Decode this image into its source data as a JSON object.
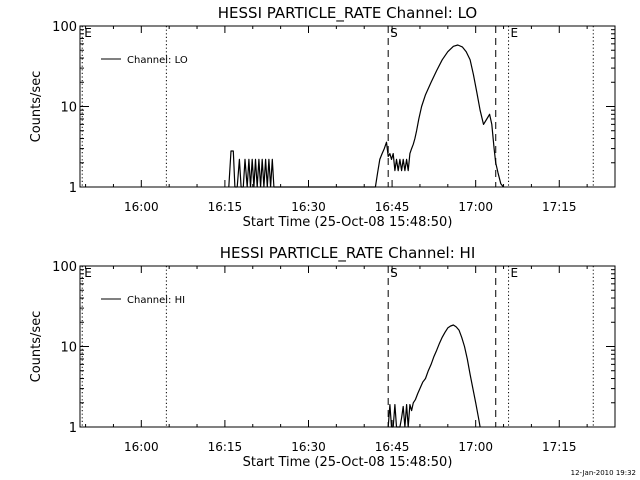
{
  "chart_data": [
    {
      "type": "line",
      "title": "HESSI PARTICLE_RATE Channel: LO",
      "xlabel": "Start Time (25-Oct-08 15:48:50)",
      "ylabel": "Counts/sec",
      "x_unit": "minutes",
      "xlim": [
        949,
        1045
      ],
      "ylim": [
        1,
        100
      ],
      "y_scale": "log",
      "x_ticks": [
        {
          "value": 960,
          "label": "16:00"
        },
        {
          "value": 975,
          "label": "16:15"
        },
        {
          "value": 990,
          "label": "16:30"
        },
        {
          "value": 1005,
          "label": "16:45"
        },
        {
          "value": 1020,
          "label": "17:00"
        },
        {
          "value": 1035,
          "label": "17:15"
        }
      ],
      "y_ticks": [
        {
          "value": 1,
          "label": "1"
        },
        {
          "value": 10,
          "label": "10"
        },
        {
          "value": 100,
          "label": "100"
        }
      ],
      "legend": {
        "entry": "Channel: LO",
        "position": "top-left"
      },
      "markers": [
        {
          "x": 949.4,
          "label": "E",
          "style": "dotted"
        },
        {
          "x": 964.5,
          "label": "",
          "style": "dotted"
        },
        {
          "x": 1004.3,
          "label": "S",
          "style": "dashed"
        },
        {
          "x": 1023.6,
          "label": "",
          "style": "dashed"
        },
        {
          "x": 1025.9,
          "label": "E",
          "style": "dotted"
        },
        {
          "x": 1041.1,
          "label": "",
          "style": "dotted"
        }
      ],
      "series": [
        {
          "name": "Channel: LO",
          "x": [
            975.7,
            976.1,
            976.5,
            976.8,
            977.2,
            977.6,
            977.9,
            978.3,
            978.6,
            979.0,
            979.3,
            979.6,
            979.9,
            980.2,
            980.5,
            980.8,
            981.1,
            981.4,
            981.7,
            982.0,
            982.3,
            982.6,
            982.9,
            983.2,
            983.5,
            983.8,
            984.0,
            1002.0,
            1002.4,
            1002.8,
            1003.2,
            1003.6,
            1004.0,
            1004.3,
            1004.6,
            1004.9,
            1005.2,
            1005.5,
            1005.8,
            1006.1,
            1006.4,
            1006.7,
            1007.0,
            1007.3,
            1007.6,
            1007.9,
            1008.2,
            1008.5,
            1008.8,
            1009.1,
            1009.4,
            1009.8,
            1010.3,
            1011.0,
            1012.0,
            1013.0,
            1014.0,
            1015.0,
            1016.0,
            1016.8,
            1017.6,
            1018.3,
            1019.0,
            1019.6,
            1020.2,
            1020.8,
            1021.4,
            1022.0,
            1022.5,
            1022.9,
            1023.3,
            1023.6,
            1024.0,
            1024.5,
            1025.0
          ],
          "y": [
            1,
            2.8,
            2.8,
            1,
            1,
            2.2,
            1,
            1,
            2.2,
            1,
            2.2,
            1,
            2.2,
            1,
            2.2,
            1,
            2.2,
            1,
            2.2,
            1,
            2.2,
            1,
            2.2,
            1,
            2.2,
            1,
            1,
            1,
            1.5,
            2.2,
            2.6,
            3,
            3.6,
            2.4,
            2.6,
            2.2,
            2.6,
            1.6,
            2.2,
            1.6,
            2.2,
            1.6,
            2.2,
            1.6,
            2.2,
            1.6,
            2.6,
            3,
            3.4,
            4,
            5,
            7,
            10,
            14,
            20,
            28,
            38,
            48,
            56,
            58,
            55,
            48,
            38,
            25,
            15,
            9,
            6,
            7,
            8,
            6,
            3,
            2,
            1.5,
            1.1,
            1
          ]
        }
      ]
    },
    {
      "type": "line",
      "title": "HESSI PARTICLE_RATE Channel: HI",
      "xlabel": "Start Time (25-Oct-08 15:48:50)",
      "ylabel": "Counts/sec",
      "x_unit": "minutes",
      "xlim": [
        949,
        1045
      ],
      "ylim": [
        1,
        100
      ],
      "y_scale": "log",
      "x_ticks": [
        {
          "value": 960,
          "label": "16:00"
        },
        {
          "value": 975,
          "label": "16:15"
        },
        {
          "value": 990,
          "label": "16:30"
        },
        {
          "value": 1005,
          "label": "16:45"
        },
        {
          "value": 1020,
          "label": "17:00"
        },
        {
          "value": 1035,
          "label": "17:15"
        }
      ],
      "y_ticks": [
        {
          "value": 1,
          "label": "1"
        },
        {
          "value": 10,
          "label": "10"
        },
        {
          "value": 100,
          "label": "100"
        }
      ],
      "legend": {
        "entry": "Channel: HI",
        "position": "top-left"
      },
      "markers": [
        {
          "x": 949.4,
          "label": "E",
          "style": "dotted"
        },
        {
          "x": 964.5,
          "label": "",
          "style": "dotted"
        },
        {
          "x": 1004.3,
          "label": "S",
          "style": "dashed"
        },
        {
          "x": 1023.6,
          "label": "",
          "style": "dashed"
        },
        {
          "x": 1025.9,
          "label": "E",
          "style": "dotted"
        },
        {
          "x": 1041.1,
          "label": "",
          "style": "dotted"
        }
      ],
      "series": [
        {
          "name": "Channel: HI",
          "x": [
            1004.3,
            1004.6,
            1004.9,
            1005.2,
            1005.5,
            1005.8,
            1006.1,
            1006.4,
            1006.7,
            1007.0,
            1007.3,
            1007.6,
            1007.9,
            1008.2,
            1008.5,
            1008.8,
            1009.2,
            1009.6,
            1010.0,
            1010.5,
            1011.0,
            1011.5,
            1012.0,
            1012.5,
            1013.0,
            1013.5,
            1014.0,
            1014.5,
            1015.0,
            1015.5,
            1016.0,
            1016.5,
            1017.0,
            1017.5,
            1018.0,
            1018.5,
            1019.0,
            1019.5,
            1020.0,
            1020.5,
            1020.8
          ],
          "y": [
            1,
            1.9,
            1,
            1,
            1.9,
            1,
            1,
            1,
            1.3,
            1.8,
            1,
            1.9,
            1,
            1.9,
            1.6,
            2,
            2.2,
            2.6,
            3,
            3.6,
            4,
            5,
            6,
            7.5,
            9,
            11,
            13,
            15,
            17,
            18,
            18.5,
            17.5,
            16,
            13,
            10,
            7,
            4.5,
            3,
            2,
            1.3,
            1
          ]
        }
      ]
    }
  ],
  "timestamp": "12-Jan-2010 19:32"
}
